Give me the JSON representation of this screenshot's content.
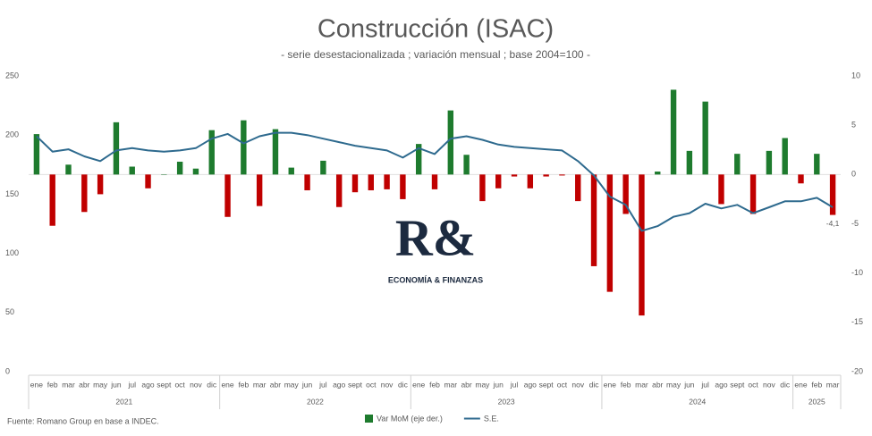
{
  "chart_data": {
    "type": "bar_line",
    "title": "Construcción (ISAC)",
    "subtitle": "- serie desestacionalizada ; variación mensual ; base 2004=100 -",
    "categories": [
      "ene",
      "feb",
      "mar",
      "abr",
      "may",
      "jun",
      "jul",
      "ago",
      "sept",
      "oct",
      "nov",
      "dic",
      "ene",
      "feb",
      "mar",
      "abr",
      "may",
      "jun",
      "jul",
      "ago",
      "sept",
      "oct",
      "nov",
      "dic",
      "ene",
      "feb",
      "mar",
      "abr",
      "may",
      "jun",
      "jul",
      "ago",
      "sept",
      "oct",
      "nov",
      "dic",
      "ene",
      "feb",
      "mar",
      "abr",
      "may",
      "jun",
      "jul",
      "ago",
      "sept",
      "oct",
      "nov",
      "dic",
      "ene",
      "feb",
      "mar"
    ],
    "years": [
      "2021",
      "2022",
      "2023",
      "2024",
      "2025"
    ],
    "series": [
      {
        "name": "Var MoM (eje der.)",
        "kind": "bar",
        "axis": "y2",
        "color": "#1e7b2e",
        "negative_color": "#c00000",
        "values": [
          4.1,
          -5.2,
          1.0,
          -3.8,
          -2.0,
          5.3,
          0.8,
          -1.4,
          0.0,
          1.3,
          0.6,
          4.5,
          -4.3,
          5.5,
          -3.2,
          4.6,
          0.7,
          -1.6,
          1.4,
          -3.3,
          -1.8,
          -1.6,
          -1.5,
          -2.5,
          3.1,
          -1.5,
          6.5,
          2.0,
          -2.7,
          -1.4,
          -0.2,
          -1.4,
          -0.2,
          -0.1,
          -2.7,
          -9.3,
          -11.9,
          -4.0,
          -14.3,
          0.3,
          8.6,
          2.4,
          7.4,
          -3.0,
          2.1,
          -4.0,
          2.4,
          3.7,
          -0.9,
          2.1,
          -4.1
        ],
        "value_labels": [
          null,
          null,
          null,
          null,
          null,
          null,
          null,
          null,
          null,
          null,
          null,
          null,
          null,
          null,
          null,
          null,
          null,
          null,
          null,
          null,
          null,
          null,
          null,
          null,
          null,
          null,
          null,
          null,
          null,
          null,
          null,
          null,
          null,
          null,
          null,
          null,
          null,
          null,
          null,
          null,
          null,
          null,
          null,
          null,
          null,
          null,
          null,
          null,
          null,
          null,
          "-4,1"
        ]
      },
      {
        "name": "S.E.",
        "kind": "line",
        "axis": "y",
        "color": "#2e6a8e",
        "values": [
          199,
          186,
          188,
          182,
          178,
          187,
          189,
          187,
          186,
          187,
          189,
          197,
          201,
          193,
          199,
          202,
          202,
          200,
          197,
          194,
          191,
          189,
          187,
          181,
          189,
          184,
          197,
          199,
          196,
          192,
          190,
          189,
          188,
          187,
          178,
          166,
          148,
          141,
          119,
          123,
          131,
          134,
          142,
          138,
          141,
          134,
          139,
          144,
          144,
          147,
          139
        ]
      }
    ],
    "ylim": [
      0,
      250
    ],
    "yticks": [
      0,
      50,
      100,
      150,
      200,
      250
    ],
    "y2lim": [
      -20,
      10
    ],
    "y2ticks": [
      -20,
      -15,
      -10,
      -5,
      0,
      5,
      10
    ],
    "watermark": {
      "mark": "R&",
      "text": "ECONOMÍA & FINANZAS"
    },
    "source": "Fuente: Romano Group en base a INDEC."
  }
}
